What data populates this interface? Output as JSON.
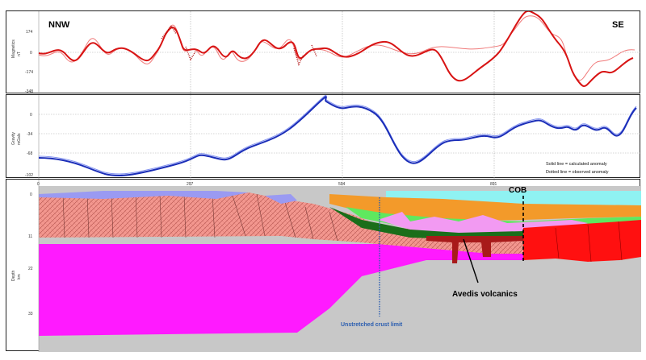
{
  "magnetics": {
    "direction_left": "NNW",
    "direction_right": "SE",
    "ylabel": "Magnetics",
    "yunit": "nT",
    "ticks": [
      "174",
      "0",
      "-174",
      "-348"
    ],
    "colors": {
      "calculated": "#d81414",
      "observed": "#f07a7a"
    }
  },
  "gravity": {
    "ylabel": "Gravity",
    "yunit": "mGals",
    "ticks": [
      "0",
      "-34",
      "-68",
      "-102"
    ],
    "distance_ticks": [
      "0",
      "297",
      "594",
      "891"
    ],
    "legend_solid": "Solid line = calculated anomaly",
    "legend_dotted": "Dotted line = observed anomaly",
    "colors": {
      "calculated": "#1a2db8",
      "observed": "#7f8ff0"
    }
  },
  "section": {
    "ylabel": "Depth",
    "yunit": "km",
    "depth_ticks": [
      "0",
      "11",
      "22",
      "33"
    ],
    "cob_label": "COB",
    "volcanics_label": "Avedis volcanics",
    "crust_limit_label": "Unstretched crust limit",
    "colors": {
      "water": "#8ff2f2",
      "sediment_orange": "#f39a2a",
      "crust_salmon": "#f3978f",
      "mantle_magenta": "#ff1aff",
      "asthenosphere_grey": "#c8c8c8",
      "oceanic_red": "#ff1010",
      "green_light": "#5fe85f",
      "green_dark": "#1a6e1a",
      "volcanic_pink": "#f29af2",
      "volcanic_dark": "#a81a1a",
      "lavender": "#9a9af2"
    }
  }
}
